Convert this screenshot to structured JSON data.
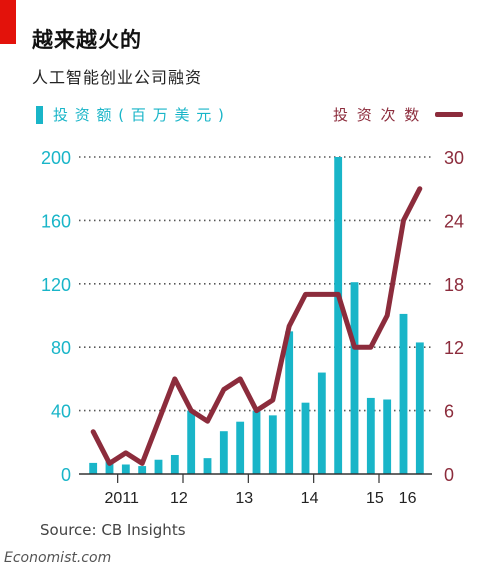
{
  "title": "越来越火的",
  "subtitle": "人工智能创业公司融资",
  "legend": {
    "left_label": "投 资 额 ( 百 万 美 元 )",
    "right_label": "投 资 次 数"
  },
  "source": "Source: CB Insights",
  "brand": "Economist.com",
  "colors": {
    "bars": "#19b5c8",
    "line": "#8c2c3c",
    "accent_red": "#e3120b",
    "grid": "#555555"
  },
  "chart_data": {
    "type": "bar",
    "x_tick_labels": [
      "2011",
      "12",
      "13",
      "14",
      "15",
      "16"
    ],
    "left_axis": {
      "label": "投资额(百万美元)",
      "ticks": [
        0,
        40,
        80,
        120,
        160,
        200
      ],
      "ylim": [
        0,
        200
      ]
    },
    "right_axis": {
      "label": "投资次数",
      "ticks": [
        0,
        6,
        12,
        18,
        24,
        30
      ],
      "ylim": [
        0,
        30
      ]
    },
    "series": [
      {
        "name": "投资额(百万美元)",
        "type": "bar",
        "axis": "left",
        "values": [
          7,
          8,
          6,
          5,
          9,
          12,
          40,
          10,
          27,
          33,
          40,
          37,
          90,
          45,
          64,
          200,
          121,
          48,
          47,
          101,
          83
        ]
      },
      {
        "name": "投资次数",
        "type": "line",
        "axis": "right",
        "values": [
          4,
          1,
          2,
          1,
          5,
          9,
          6,
          5,
          8,
          9,
          6,
          7,
          14,
          17,
          17,
          17,
          12,
          12,
          15,
          24,
          27
        ]
      }
    ],
    "grid": true
  }
}
